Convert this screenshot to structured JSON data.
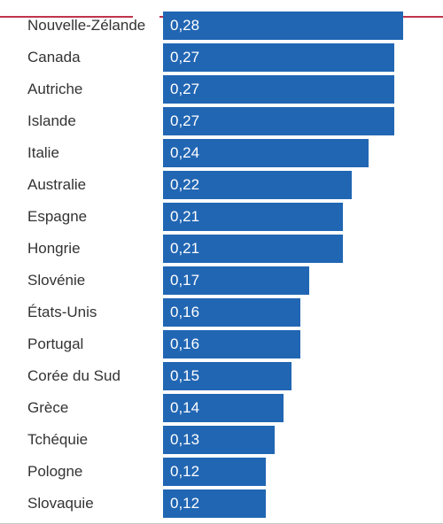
{
  "colors": {
    "bar": "#2166b3",
    "accent": "#c0344c",
    "value_text": "#ffffff",
    "label_text": "#333333"
  },
  "chart_data": {
    "type": "bar",
    "orientation": "horizontal",
    "categories": [
      "Nouvelle-Zélande",
      "Canada",
      "Autriche",
      "Islande",
      "Italie",
      "Australie",
      "Espagne",
      "Hongrie",
      "Slovénie",
      "États-Unis",
      "Portugal",
      "Corée du Sud",
      "Grèce",
      "Tchéquie",
      "Pologne",
      "Slovaquie"
    ],
    "values": [
      0.28,
      0.27,
      0.27,
      0.27,
      0.24,
      0.22,
      0.21,
      0.21,
      0.17,
      0.16,
      0.16,
      0.15,
      0.14,
      0.13,
      0.12,
      0.12
    ],
    "value_labels": [
      "0,28",
      "0,27",
      "0,27",
      "0,27",
      "0,24",
      "0,22",
      "0,21",
      "0,21",
      "0,17",
      "0,16",
      "0,16",
      "0,15",
      "0,14",
      "0,13",
      "0,12",
      "0,12"
    ],
    "xlim": [
      0,
      0.28
    ],
    "grid": false,
    "legend": "none"
  }
}
